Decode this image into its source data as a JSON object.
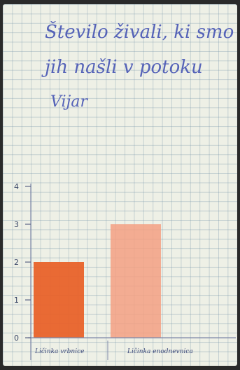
{
  "chart_data": {
    "type": "bar",
    "title_lines": [
      "Število živali, ki smo",
      "jih našli v potoku",
      "Vijar"
    ],
    "categories": [
      "Ličinka vrbnice",
      "Ličinka enodnevnica"
    ],
    "values": [
      2,
      3
    ],
    "colors": [
      "#e8622a",
      "#f3a082"
    ],
    "ylim": [
      0,
      4
    ],
    "yticks": [
      "0",
      "1",
      "2",
      "3",
      "4"
    ],
    "grid": true
  }
}
